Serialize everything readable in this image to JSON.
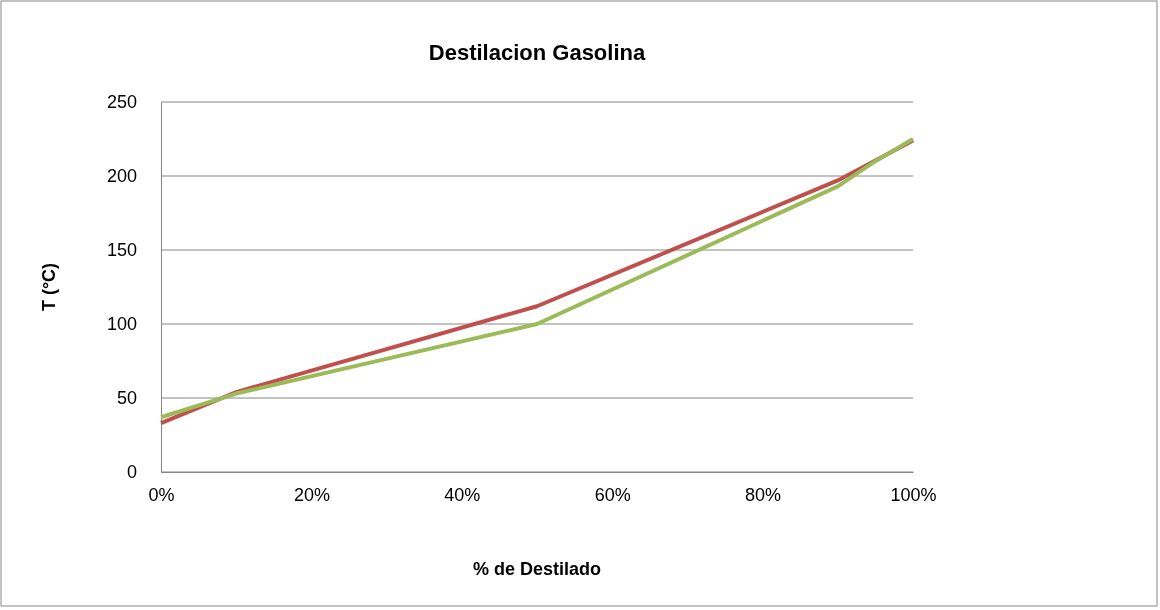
{
  "chart_data": {
    "type": "line",
    "title": "Destilacion Gasolina",
    "xlabel": "% de Destilado",
    "ylabel": "T (°C)",
    "xlim": [
      0,
      100
    ],
    "xticks": [
      {
        "value": 0,
        "label": "0%"
      },
      {
        "value": 20,
        "label": "20%"
      },
      {
        "value": 40,
        "label": "40%"
      },
      {
        "value": 60,
        "label": "60%"
      },
      {
        "value": 80,
        "label": "80%"
      },
      {
        "value": 100,
        "label": "100%"
      }
    ],
    "ylim": [
      0,
      250
    ],
    "yticks": [
      0,
      50,
      100,
      150,
      200,
      250
    ],
    "grid": "y",
    "marker": "none",
    "line_style": "solid",
    "series": [
      {
        "color": "#c0504d",
        "x": [
          0,
          10,
          50,
          90,
          100
        ],
        "values": [
          33,
          54,
          112,
          197,
          224
        ]
      },
      {
        "color": "#9bbb59",
        "x": [
          0,
          10,
          50,
          90,
          95,
          100
        ],
        "values": [
          37,
          53,
          100,
          193,
          210,
          225
        ]
      }
    ]
  }
}
